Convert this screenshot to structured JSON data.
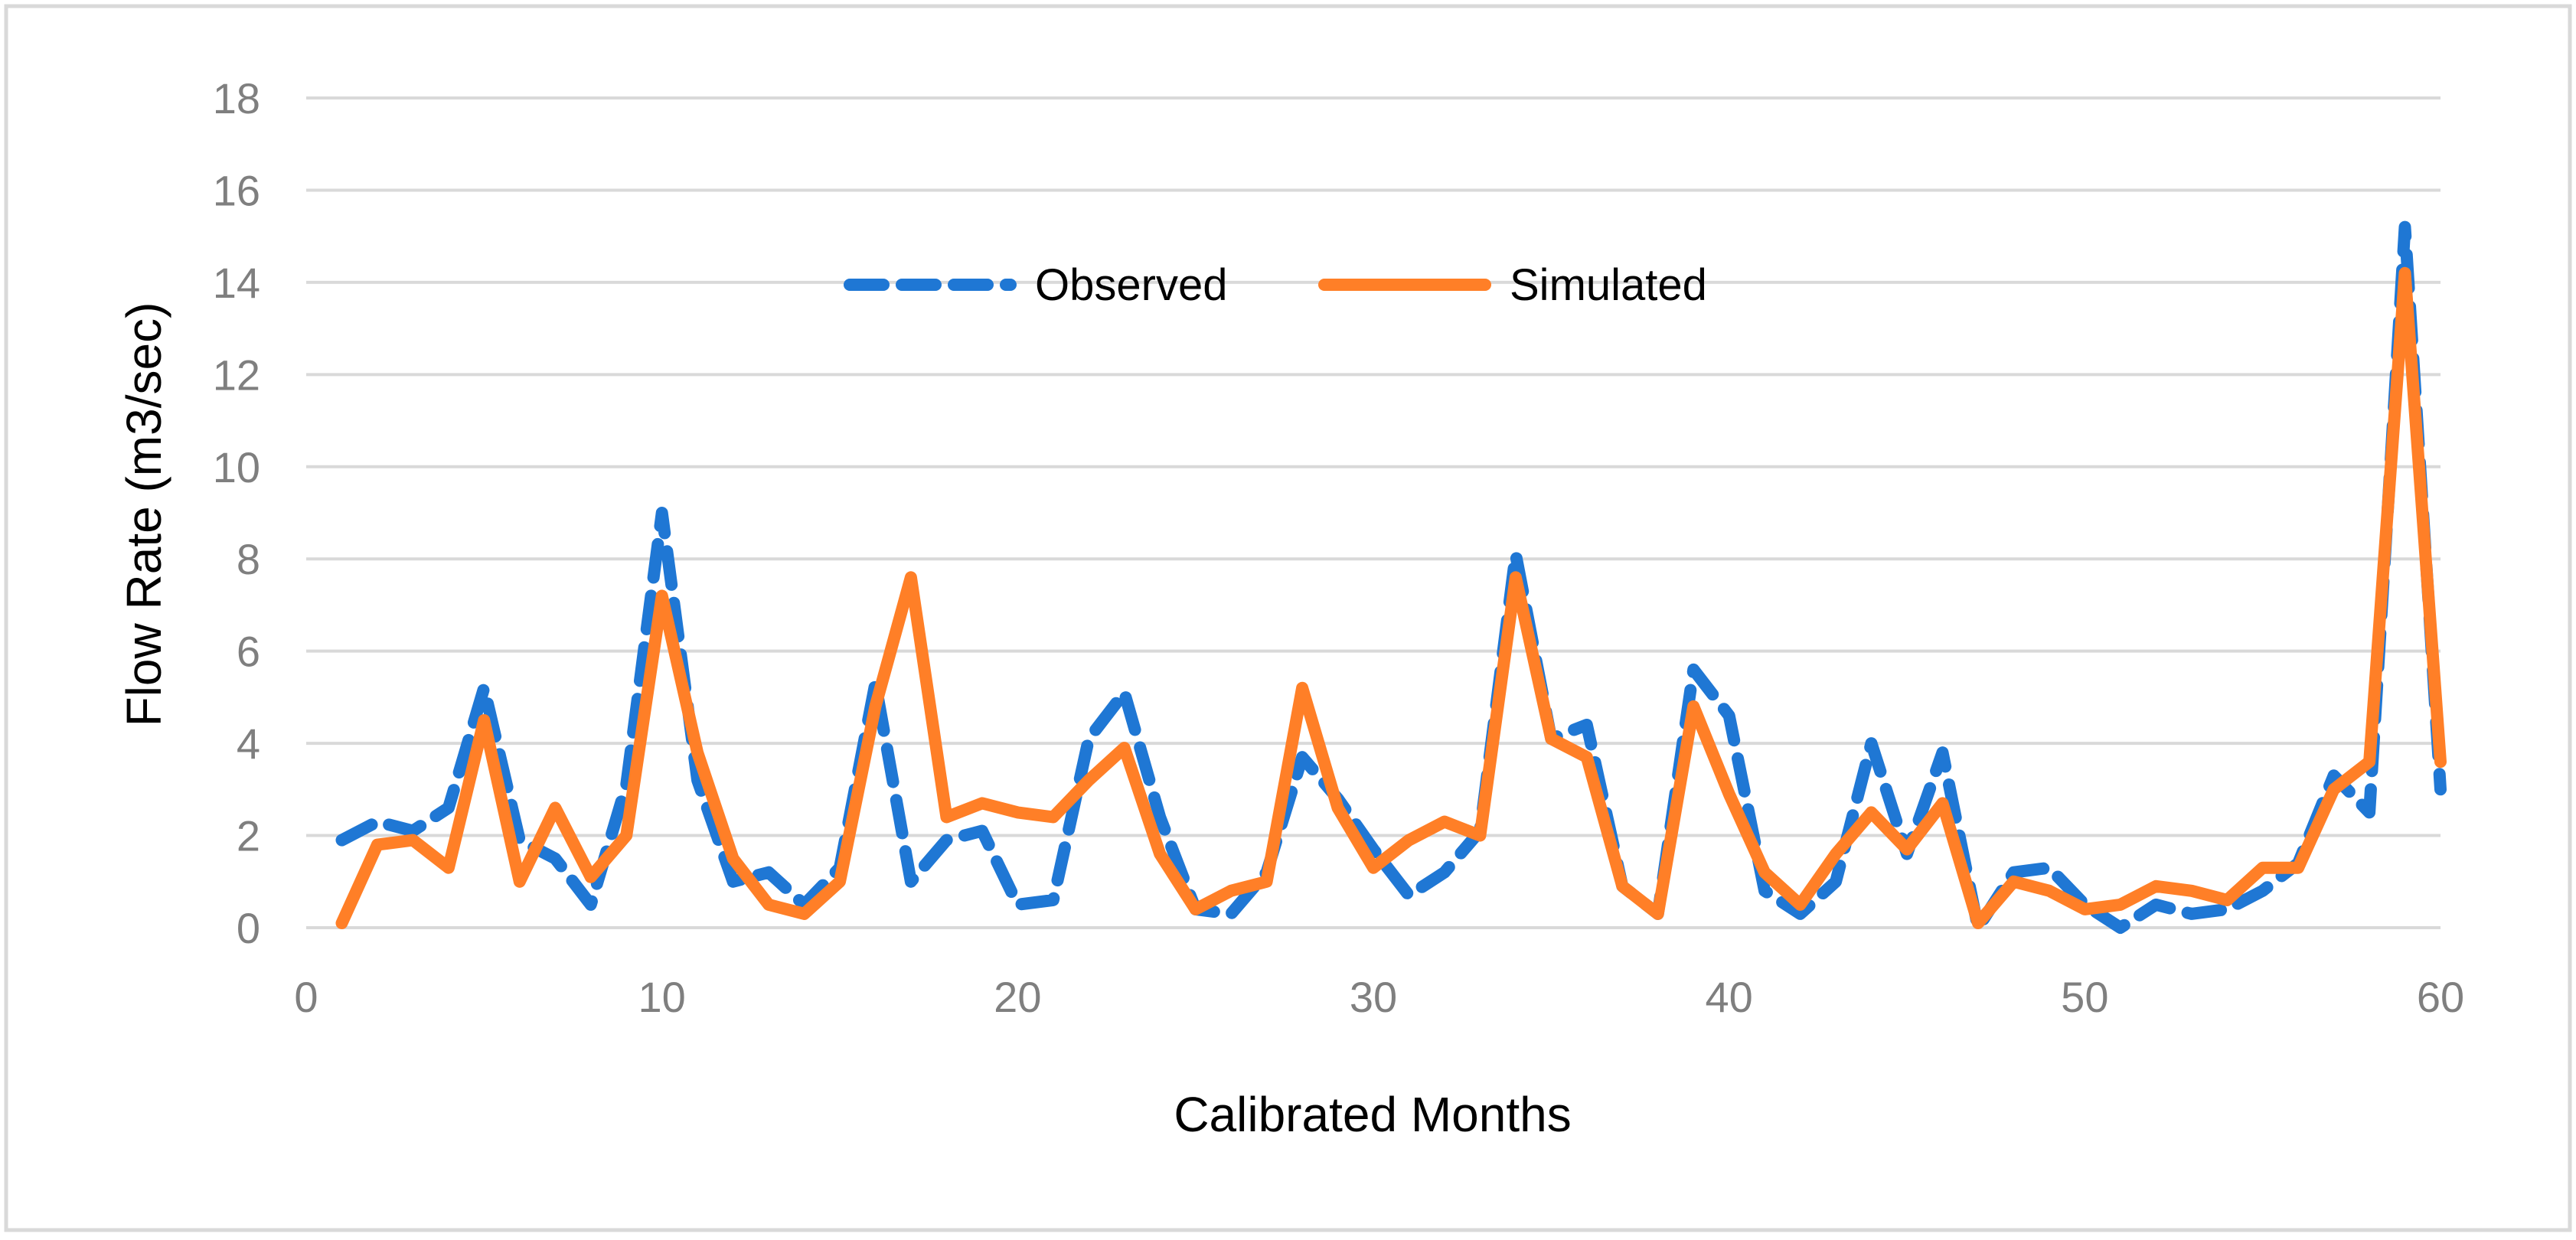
{
  "chart_data": {
    "type": "line",
    "title": "",
    "xlabel": "Calibrated Months",
    "ylabel": "Flow Rate (m3/sec)",
    "xlim": [
      0,
      60
    ],
    "ylim": [
      0,
      18
    ],
    "x_ticks": [
      0,
      10,
      20,
      30,
      40,
      50,
      60
    ],
    "y_ticks": [
      0,
      2,
      4,
      6,
      8,
      10,
      12,
      14,
      16,
      18
    ],
    "grid": true,
    "legend_position": "top-center",
    "x": [
      1,
      2,
      3,
      4,
      5,
      6,
      7,
      8,
      9,
      10,
      11,
      12,
      13,
      14,
      15,
      16,
      17,
      18,
      19,
      20,
      21,
      22,
      23,
      24,
      25,
      26,
      27,
      28,
      29,
      30,
      31,
      32,
      33,
      34,
      35,
      36,
      37,
      38,
      39,
      40,
      41,
      42,
      43,
      44,
      45,
      46,
      47,
      48,
      49,
      50,
      51,
      52,
      53,
      54,
      55,
      56,
      57,
      58,
      59,
      60
    ],
    "series": [
      {
        "name": "Observed",
        "color": "#1f77d4",
        "style": "dashed",
        "values": [
          1.9,
          2.3,
          2.1,
          2.6,
          5.2,
          1.9,
          1.5,
          0.5,
          3.1,
          9.0,
          3.2,
          1.0,
          1.2,
          0.5,
          1.3,
          5.3,
          1.0,
          1.9,
          2.1,
          0.5,
          0.6,
          4.1,
          5.1,
          2.4,
          0.4,
          0.3,
          1.2,
          3.7,
          2.8,
          1.7,
          0.7,
          1.2,
          2.1,
          8.1,
          4.1,
          4.4,
          0.9,
          0.3,
          5.6,
          4.6,
          0.8,
          0.3,
          1.0,
          4.0,
          1.6,
          3.8,
          0.0,
          1.2,
          1.3,
          0.5,
          0.0,
          0.5,
          0.3,
          0.4,
          0.8,
          1.4,
          3.3,
          2.5,
          15.2,
          3.0
        ]
      },
      {
        "name": "Simulated",
        "color": "#ff7f27",
        "style": "solid",
        "values": [
          0.1,
          1.8,
          1.9,
          1.3,
          4.5,
          1.0,
          2.6,
          1.1,
          2.0,
          7.2,
          3.8,
          1.5,
          0.5,
          0.3,
          1.0,
          4.8,
          7.6,
          2.4,
          2.7,
          2.5,
          2.4,
          3.2,
          3.9,
          1.6,
          0.4,
          0.8,
          1.0,
          5.2,
          2.6,
          1.3,
          1.9,
          2.3,
          2.0,
          7.6,
          4.1,
          3.7,
          0.9,
          0.3,
          4.8,
          2.9,
          1.2,
          0.5,
          1.6,
          2.5,
          1.7,
          2.7,
          0.1,
          1.0,
          0.8,
          0.4,
          0.5,
          0.9,
          0.8,
          0.6,
          1.3,
          1.3,
          3.0,
          3.6,
          14.2,
          3.6
        ]
      }
    ]
  }
}
